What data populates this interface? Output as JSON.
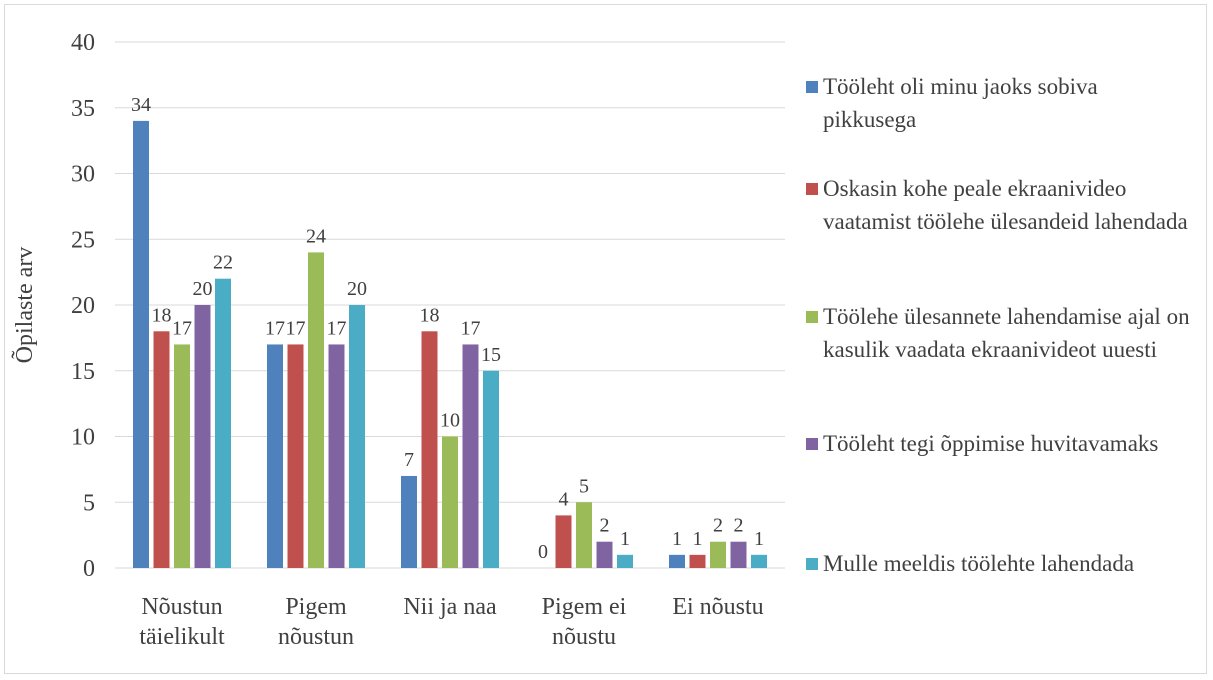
{
  "chart_data": {
    "type": "bar",
    "y_label": "Õpilaste arv",
    "categories": [
      "Nõustun täielikult",
      "Pigem nõustun",
      "Nii ja naa",
      "Pigem ei nõustu",
      "Ei nõustu"
    ],
    "series": [
      {
        "name": "Tööleht oli minu jaoks sobiva pikkusega",
        "color": "#4f81bd",
        "values": [
          34,
          17,
          7,
          0,
          1
        ]
      },
      {
        "name": "Oskasin kohe peale ekraanivideo vaatamist töölehe ülesandeid lahendada",
        "color": "#c0504d",
        "values": [
          18,
          17,
          18,
          4,
          1
        ]
      },
      {
        "name": "Töölehe ülesannete lahendamise ajal on kasulik vaadata ekraanivideot uuesti",
        "color": "#9bbb59",
        "values": [
          17,
          24,
          10,
          5,
          2
        ]
      },
      {
        "name": "Tööleht tegi õppimise huvitavamaks",
        "color": "#8064a2",
        "values": [
          20,
          17,
          17,
          2,
          2
        ]
      },
      {
        "name": "Mulle meeldis töölehte lahendada",
        "color": "#4bacc6",
        "values": [
          22,
          20,
          15,
          1,
          1
        ]
      }
    ],
    "ylim": [
      0,
      40
    ],
    "yticks": [
      0,
      5,
      10,
      15,
      20,
      25,
      30,
      35,
      40
    ],
    "grid": true,
    "legend": "right"
  }
}
